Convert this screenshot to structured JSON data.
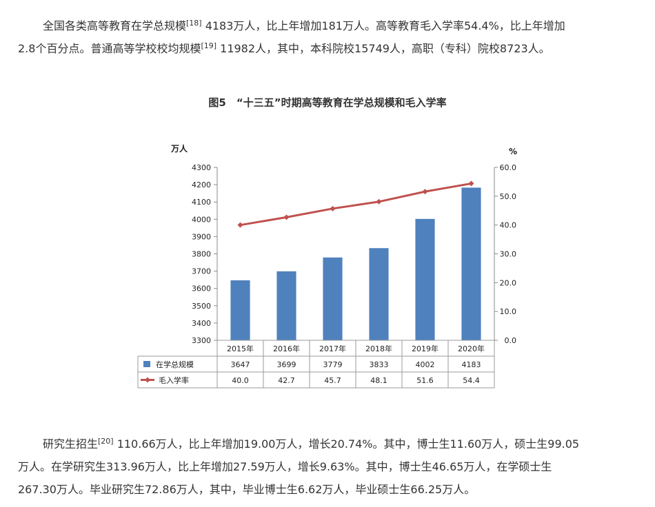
{
  "para1": {
    "line1_a": "全国各类高等教育在学总规模",
    "line1_sup": "[18]",
    "line1_b": " 4183万人，比上年增加181万人。高等教育毛入学率54.4%，比上年增加",
    "line2_a": "2.8个百分点。普通高等学校校均规模",
    "line2_sup": "[19]",
    "line2_b": " 11982人，其中，本科院校15749人，高职（专科）院校8723人。"
  },
  "figure_title": "图5　“十三五”时期高等教育在学总规模和毛入学率",
  "chart_data": {
    "type": "bar",
    "categories": [
      "2015年",
      "2016年",
      "2017年",
      "2018年",
      "2019年",
      "2020年"
    ],
    "series": [
      {
        "name": "在学总规模",
        "type": "bar",
        "axis": "left",
        "color": "#4f81bd",
        "values": [
          3647,
          3699,
          3779,
          3833,
          4002,
          4183
        ],
        "labels": [
          "3647",
          "3699",
          "3779",
          "3833",
          "4002",
          "4183"
        ]
      },
      {
        "name": "毛入学率",
        "type": "line",
        "axis": "right",
        "color": "#c0504d",
        "values": [
          40.0,
          42.7,
          45.7,
          48.1,
          51.6,
          54.4
        ],
        "labels": [
          "40.0",
          "42.7",
          "45.7",
          "48.1",
          "51.6",
          "54.4"
        ]
      }
    ],
    "y_left": {
      "unit": "万人",
      "min": 3300,
      "max": 4300,
      "ticks": [
        "3300",
        "3400",
        "3500",
        "3600",
        "3700",
        "3800",
        "3900",
        "4000",
        "4100",
        "4200",
        "4300"
      ]
    },
    "y_right": {
      "unit": "%",
      "min": 0,
      "max": 60,
      "ticks": [
        "0.0",
        "10.0",
        "20.0",
        "30.0",
        "40.0",
        "50.0",
        "60.0"
      ]
    },
    "grid": false,
    "legend": "data-table"
  },
  "para2": {
    "line1_a": "研究生招生",
    "line1_sup": "[20]",
    "line1_b": " 110.66万人，比上年增加19.00万人，增长20.74%。其中，博士生11.60万人，硕士生99.05",
    "line2": "万人。在学研究生313.96万人，比上年增加27.59万人，增长9.63%。其中，博士生46.65万人，在学硕士生",
    "line3": "267.30万人。毕业研究生72.86万人，其中，毕业博士生6.62万人，毕业硕士生66.25万人。"
  }
}
